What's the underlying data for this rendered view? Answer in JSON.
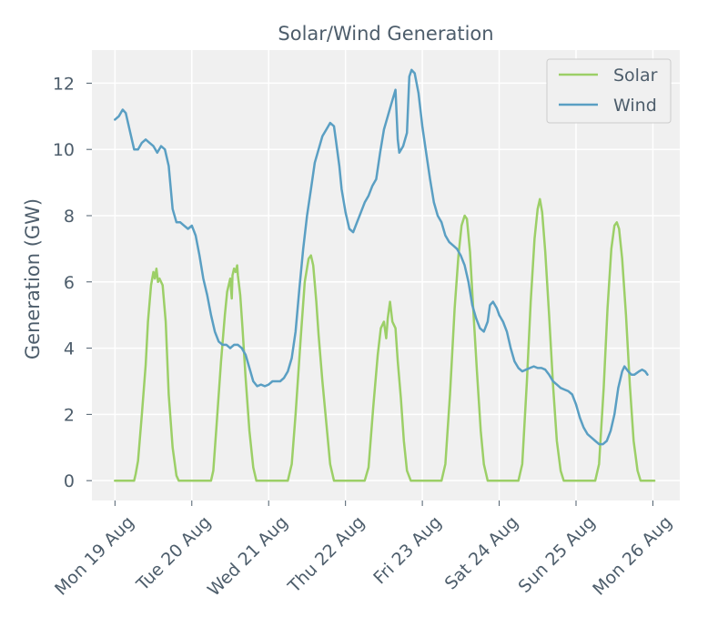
{
  "chart_data": {
    "type": "line",
    "title": "Solar/Wind Generation",
    "xlabel": "",
    "ylabel": "Generation (GW)",
    "x_unit": "days since Mon 19 Aug 00:00",
    "xlim": [
      -0.3,
      7.35
    ],
    "ylim": [
      -0.6,
      13.0
    ],
    "yticks": [
      0,
      2,
      4,
      6,
      8,
      10,
      12
    ],
    "xticks": [
      {
        "value": 0,
        "label": "Mon 19 Aug"
      },
      {
        "value": 1,
        "label": "Tue 20 Aug"
      },
      {
        "value": 2,
        "label": "Wed 21 Aug"
      },
      {
        "value": 3,
        "label": "Thu 22 Aug"
      },
      {
        "value": 4,
        "label": "Fri 23 Aug"
      },
      {
        "value": 5,
        "label": "Sat 24 Aug"
      },
      {
        "value": 6,
        "label": "Sun 25 Aug"
      },
      {
        "value": 7,
        "label": "Mon 26 Aug"
      }
    ],
    "grid": true,
    "legend": {
      "position": "top-right"
    },
    "series": [
      {
        "name": "Solar",
        "color": "#9ccf67",
        "points": [
          [
            0.0,
            0.0
          ],
          [
            0.25,
            0.0
          ],
          [
            0.27,
            0.2
          ],
          [
            0.3,
            0.6
          ],
          [
            0.35,
            2.0
          ],
          [
            0.4,
            3.5
          ],
          [
            0.43,
            4.8
          ],
          [
            0.47,
            5.9
          ],
          [
            0.5,
            6.3
          ],
          [
            0.52,
            6.1
          ],
          [
            0.54,
            6.4
          ],
          [
            0.56,
            6.0
          ],
          [
            0.58,
            6.1
          ],
          [
            0.62,
            5.9
          ],
          [
            0.66,
            4.8
          ],
          [
            0.7,
            2.6
          ],
          [
            0.75,
            1.0
          ],
          [
            0.8,
            0.15
          ],
          [
            0.83,
            0.0
          ],
          [
            1.25,
            0.0
          ],
          [
            1.28,
            0.3
          ],
          [
            1.32,
            1.6
          ],
          [
            1.38,
            3.6
          ],
          [
            1.43,
            5.0
          ],
          [
            1.46,
            5.7
          ],
          [
            1.48,
            5.9
          ],
          [
            1.5,
            6.1
          ],
          [
            1.52,
            5.5
          ],
          [
            1.53,
            6.2
          ],
          [
            1.55,
            6.4
          ],
          [
            1.57,
            6.3
          ],
          [
            1.59,
            6.5
          ],
          [
            1.6,
            6.2
          ],
          [
            1.63,
            5.6
          ],
          [
            1.66,
            4.6
          ],
          [
            1.7,
            3.1
          ],
          [
            1.75,
            1.5
          ],
          [
            1.8,
            0.4
          ],
          [
            1.84,
            0.0
          ],
          [
            2.25,
            0.0
          ],
          [
            2.3,
            0.5
          ],
          [
            2.35,
            2.0
          ],
          [
            2.42,
            4.4
          ],
          [
            2.47,
            6.0
          ],
          [
            2.52,
            6.7
          ],
          [
            2.55,
            6.8
          ],
          [
            2.58,
            6.5
          ],
          [
            2.62,
            5.4
          ],
          [
            2.65,
            4.4
          ],
          [
            2.7,
            3.0
          ],
          [
            2.76,
            1.5
          ],
          [
            2.8,
            0.5
          ],
          [
            2.85,
            0.0
          ],
          [
            3.25,
            0.0
          ],
          [
            3.3,
            0.4
          ],
          [
            3.36,
            2.2
          ],
          [
            3.42,
            3.8
          ],
          [
            3.46,
            4.6
          ],
          [
            3.5,
            4.8
          ],
          [
            3.53,
            4.3
          ],
          [
            3.55,
            4.9
          ],
          [
            3.58,
            5.4
          ],
          [
            3.61,
            4.8
          ],
          [
            3.65,
            4.6
          ],
          [
            3.68,
            3.6
          ],
          [
            3.72,
            2.5
          ],
          [
            3.76,
            1.2
          ],
          [
            3.8,
            0.3
          ],
          [
            3.85,
            0.0
          ],
          [
            4.25,
            0.0
          ],
          [
            4.3,
            0.5
          ],
          [
            4.36,
            2.6
          ],
          [
            4.42,
            5.2
          ],
          [
            4.47,
            6.8
          ],
          [
            4.51,
            7.7
          ],
          [
            4.55,
            8.0
          ],
          [
            4.58,
            7.9
          ],
          [
            4.62,
            6.9
          ],
          [
            4.66,
            5.3
          ],
          [
            4.71,
            3.3
          ],
          [
            4.76,
            1.5
          ],
          [
            4.8,
            0.5
          ],
          [
            4.85,
            0.0
          ],
          [
            5.25,
            0.0
          ],
          [
            5.3,
            0.5
          ],
          [
            5.36,
            3.0
          ],
          [
            5.41,
            5.4
          ],
          [
            5.46,
            7.3
          ],
          [
            5.5,
            8.2
          ],
          [
            5.53,
            8.5
          ],
          [
            5.56,
            8.1
          ],
          [
            5.6,
            6.9
          ],
          [
            5.65,
            5.0
          ],
          [
            5.7,
            2.9
          ],
          [
            5.75,
            1.2
          ],
          [
            5.8,
            0.3
          ],
          [
            5.84,
            0.0
          ],
          [
            6.25,
            0.0
          ],
          [
            6.3,
            0.5
          ],
          [
            6.36,
            2.8
          ],
          [
            6.41,
            5.2
          ],
          [
            6.46,
            7.0
          ],
          [
            6.5,
            7.7
          ],
          [
            6.53,
            7.8
          ],
          [
            6.56,
            7.6
          ],
          [
            6.6,
            6.7
          ],
          [
            6.65,
            5.0
          ],
          [
            6.7,
            2.9
          ],
          [
            6.75,
            1.2
          ],
          [
            6.8,
            0.3
          ],
          [
            6.84,
            0.0
          ],
          [
            7.02,
            0.0
          ]
        ]
      },
      {
        "name": "Wind",
        "color": "#5a9fc3",
        "points": [
          [
            0.0,
            10.9
          ],
          [
            0.05,
            11.0
          ],
          [
            0.1,
            11.2
          ],
          [
            0.14,
            11.1
          ],
          [
            0.2,
            10.5
          ],
          [
            0.25,
            10.0
          ],
          [
            0.3,
            10.0
          ],
          [
            0.35,
            10.2
          ],
          [
            0.4,
            10.3
          ],
          [
            0.45,
            10.2
          ],
          [
            0.5,
            10.1
          ],
          [
            0.55,
            9.9
          ],
          [
            0.6,
            10.1
          ],
          [
            0.65,
            10.0
          ],
          [
            0.7,
            9.5
          ],
          [
            0.75,
            8.2
          ],
          [
            0.8,
            7.8
          ],
          [
            0.85,
            7.8
          ],
          [
            0.9,
            7.7
          ],
          [
            0.95,
            7.6
          ],
          [
            1.0,
            7.7
          ],
          [
            1.05,
            7.4
          ],
          [
            1.1,
            6.8
          ],
          [
            1.15,
            6.1
          ],
          [
            1.2,
            5.6
          ],
          [
            1.25,
            5.0
          ],
          [
            1.3,
            4.5
          ],
          [
            1.35,
            4.2
          ],
          [
            1.4,
            4.1
          ],
          [
            1.45,
            4.1
          ],
          [
            1.5,
            4.0
          ],
          [
            1.55,
            4.1
          ],
          [
            1.6,
            4.1
          ],
          [
            1.65,
            4.0
          ],
          [
            1.7,
            3.8
          ],
          [
            1.75,
            3.4
          ],
          [
            1.8,
            3.0
          ],
          [
            1.85,
            2.85
          ],
          [
            1.9,
            2.9
          ],
          [
            1.95,
            2.85
          ],
          [
            2.0,
            2.9
          ],
          [
            2.05,
            3.0
          ],
          [
            2.1,
            3.0
          ],
          [
            2.15,
            3.0
          ],
          [
            2.2,
            3.1
          ],
          [
            2.25,
            3.3
          ],
          [
            2.3,
            3.7
          ],
          [
            2.35,
            4.5
          ],
          [
            2.4,
            5.8
          ],
          [
            2.45,
            7.0
          ],
          [
            2.5,
            8.0
          ],
          [
            2.55,
            8.8
          ],
          [
            2.6,
            9.6
          ],
          [
            2.65,
            10.0
          ],
          [
            2.7,
            10.4
          ],
          [
            2.75,
            10.6
          ],
          [
            2.8,
            10.8
          ],
          [
            2.85,
            10.7
          ],
          [
            2.88,
            10.2
          ],
          [
            2.92,
            9.5
          ],
          [
            2.95,
            8.8
          ],
          [
            3.0,
            8.1
          ],
          [
            3.05,
            7.6
          ],
          [
            3.1,
            7.5
          ],
          [
            3.15,
            7.8
          ],
          [
            3.2,
            8.1
          ],
          [
            3.25,
            8.4
          ],
          [
            3.3,
            8.6
          ],
          [
            3.35,
            8.9
          ],
          [
            3.4,
            9.1
          ],
          [
            3.45,
            9.9
          ],
          [
            3.5,
            10.6
          ],
          [
            3.55,
            11.0
          ],
          [
            3.6,
            11.4
          ],
          [
            3.65,
            11.8
          ],
          [
            3.68,
            10.3
          ],
          [
            3.7,
            9.9
          ],
          [
            3.75,
            10.1
          ],
          [
            3.8,
            10.5
          ],
          [
            3.83,
            12.2
          ],
          [
            3.86,
            12.4
          ],
          [
            3.9,
            12.3
          ],
          [
            3.95,
            11.7
          ],
          [
            4.0,
            10.7
          ],
          [
            4.05,
            9.9
          ],
          [
            4.1,
            9.1
          ],
          [
            4.15,
            8.4
          ],
          [
            4.2,
            8.0
          ],
          [
            4.25,
            7.8
          ],
          [
            4.3,
            7.4
          ],
          [
            4.35,
            7.2
          ],
          [
            4.4,
            7.1
          ],
          [
            4.45,
            7.0
          ],
          [
            4.5,
            6.8
          ],
          [
            4.55,
            6.5
          ],
          [
            4.6,
            6.0
          ],
          [
            4.65,
            5.3
          ],
          [
            4.7,
            4.9
          ],
          [
            4.75,
            4.6
          ],
          [
            4.8,
            4.5
          ],
          [
            4.85,
            4.8
          ],
          [
            4.88,
            5.3
          ],
          [
            4.92,
            5.4
          ],
          [
            4.97,
            5.2
          ],
          [
            5.0,
            5.0
          ],
          [
            5.05,
            4.8
          ],
          [
            5.1,
            4.5
          ],
          [
            5.15,
            4.0
          ],
          [
            5.2,
            3.6
          ],
          [
            5.25,
            3.4
          ],
          [
            5.3,
            3.3
          ],
          [
            5.35,
            3.35
          ],
          [
            5.4,
            3.4
          ],
          [
            5.45,
            3.45
          ],
          [
            5.5,
            3.4
          ],
          [
            5.55,
            3.4
          ],
          [
            5.6,
            3.35
          ],
          [
            5.65,
            3.2
          ],
          [
            5.7,
            3.0
          ],
          [
            5.75,
            2.9
          ],
          [
            5.8,
            2.8
          ],
          [
            5.85,
            2.75
          ],
          [
            5.9,
            2.7
          ],
          [
            5.95,
            2.6
          ],
          [
            6.0,
            2.3
          ],
          [
            6.05,
            1.9
          ],
          [
            6.1,
            1.6
          ],
          [
            6.15,
            1.4
          ],
          [
            6.2,
            1.3
          ],
          [
            6.25,
            1.2
          ],
          [
            6.3,
            1.1
          ],
          [
            6.35,
            1.1
          ],
          [
            6.4,
            1.2
          ],
          [
            6.45,
            1.5
          ],
          [
            6.5,
            2.0
          ],
          [
            6.55,
            2.8
          ],
          [
            6.6,
            3.3
          ],
          [
            6.63,
            3.45
          ],
          [
            6.68,
            3.3
          ],
          [
            6.72,
            3.2
          ],
          [
            6.76,
            3.2
          ],
          [
            6.82,
            3.3
          ],
          [
            6.86,
            3.35
          ],
          [
            6.9,
            3.3
          ],
          [
            6.93,
            3.2
          ]
        ]
      }
    ]
  }
}
